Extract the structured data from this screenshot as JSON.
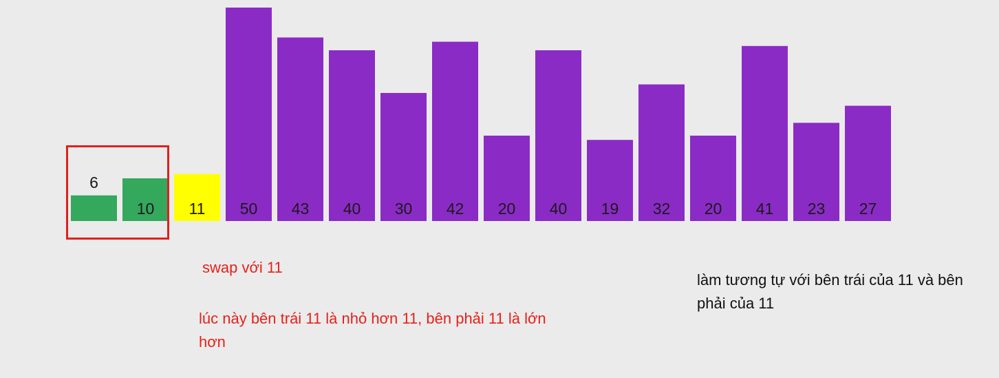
{
  "chart_data": {
    "type": "bar",
    "categories": [
      "6",
      "10",
      "11",
      "50",
      "43",
      "40",
      "30",
      "42",
      "20",
      "40",
      "19",
      "32",
      "20",
      "41",
      "23",
      "27"
    ],
    "values": [
      6,
      10,
      11,
      50,
      43,
      40,
      30,
      42,
      20,
      40,
      19,
      32,
      20,
      41,
      23,
      27
    ],
    "states": [
      "sorted",
      "sorted",
      "pivot",
      "unsorted",
      "unsorted",
      "unsorted",
      "unsorted",
      "unsorted",
      "unsorted",
      "unsorted",
      "unsorted",
      "unsorted",
      "unsorted",
      "unsorted",
      "unsorted",
      "unsorted"
    ],
    "colors": {
      "sorted": "#34a85c",
      "pivot": "#ffff00",
      "unsorted": "#8b2bc6"
    },
    "title": "",
    "xlabel": "",
    "ylabel": ""
  },
  "annotations": {
    "swap_note": "swap với 11",
    "left_note": "lúc này bên trái 11 là nhỏ hơn 11, bên phải 11 là lớn hơn",
    "right_note": "làm tương tự với bên trái của 11 và bên phải của 11"
  },
  "highlight_color": "#e0201c"
}
